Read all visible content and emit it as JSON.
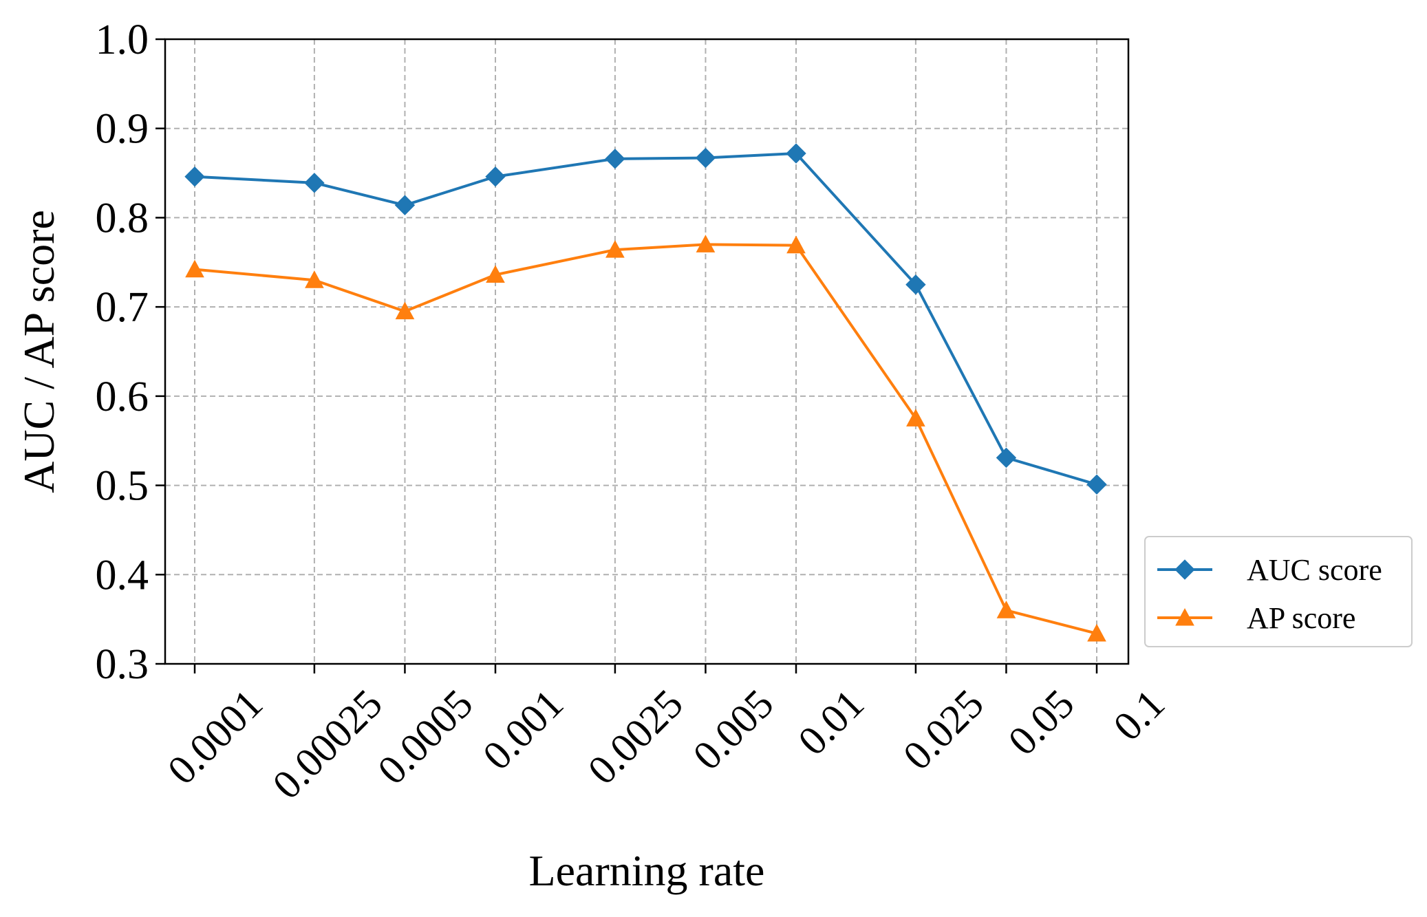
{
  "chart_data": {
    "type": "line",
    "title": "",
    "xlabel": "Learning rate",
    "ylabel": "AUC / AP score",
    "x_scale": "categorical (log-spaced positions)",
    "categories": [
      "0.0001",
      "0.00025",
      "0.0005",
      "0.001",
      "0.0025",
      "0.005",
      "0.01",
      "0.025",
      "0.05",
      "0.1"
    ],
    "x_values": [
      0.0001,
      0.00025,
      0.0005,
      0.001,
      0.0025,
      0.005,
      0.01,
      0.025,
      0.05,
      0.1
    ],
    "ylim": [
      0.3,
      1.0
    ],
    "yticks": [
      "0.3",
      "0.4",
      "0.5",
      "0.6",
      "0.7",
      "0.8",
      "0.9",
      "1.0"
    ],
    "grid": true,
    "legend_position": "outside right, bottom",
    "series": [
      {
        "name": "AUC score",
        "color": "#1f77b4",
        "marker": "diamond",
        "values": [
          0.846,
          0.839,
          0.814,
          0.846,
          0.866,
          0.867,
          0.872,
          0.725,
          0.531,
          0.501
        ]
      },
      {
        "name": "AP score",
        "color": "#ff7f0e",
        "marker": "triangle-up",
        "values": [
          0.742,
          0.73,
          0.695,
          0.736,
          0.764,
          0.77,
          0.769,
          0.575,
          0.36,
          0.334
        ]
      }
    ]
  }
}
